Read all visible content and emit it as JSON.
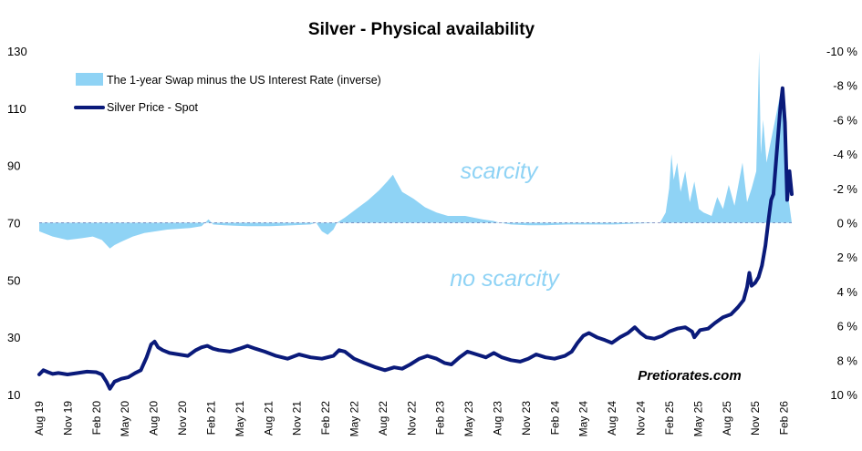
{
  "chart_data": {
    "type": "area+line",
    "title": "Silver - Physical availability",
    "xlabel": "",
    "ylabel_left": "",
    "ylabel_right": "",
    "ylim_left": [
      10,
      130
    ],
    "yticks_left": [
      10,
      30,
      50,
      70,
      90,
      110,
      130
    ],
    "ylim_right": [
      10,
      -10
    ],
    "yticks_right": [
      {
        "value": -10,
        "label": "-10 %"
      },
      {
        "value": -8,
        "label": "-8 %"
      },
      {
        "value": -6,
        "label": "-6 %"
      },
      {
        "value": -4,
        "label": "-4 %"
      },
      {
        "value": -2,
        "label": "-2 %"
      },
      {
        "value": 0,
        "label": "0 %"
      },
      {
        "value": 2,
        "label": "2 %"
      },
      {
        "value": 4,
        "label": "4 %"
      },
      {
        "value": 6,
        "label": "6 %"
      },
      {
        "value": 8,
        "label": "8 %"
      },
      {
        "value": 10,
        "label": "10 %"
      }
    ],
    "x_start": 2019.583,
    "x_end": 2026.15,
    "xticks": [
      {
        "t": 2019.583,
        "label": "Aug 19"
      },
      {
        "t": 2019.833,
        "label": "Nov 19"
      },
      {
        "t": 2020.083,
        "label": "Feb 20"
      },
      {
        "t": 2020.333,
        "label": "May 20"
      },
      {
        "t": 2020.583,
        "label": "Aug 20"
      },
      {
        "t": 2020.833,
        "label": "Nov 20"
      },
      {
        "t": 2021.083,
        "label": "Feb 21"
      },
      {
        "t": 2021.333,
        "label": "May 21"
      },
      {
        "t": 2021.583,
        "label": "Aug 21"
      },
      {
        "t": 2021.833,
        "label": "Nov 21"
      },
      {
        "t": 2022.083,
        "label": "Feb 22"
      },
      {
        "t": 2022.333,
        "label": "May 22"
      },
      {
        "t": 2022.583,
        "label": "Aug 22"
      },
      {
        "t": 2022.833,
        "label": "Nov 22"
      },
      {
        "t": 2023.083,
        "label": "Feb 23"
      },
      {
        "t": 2023.333,
        "label": "May 23"
      },
      {
        "t": 2023.583,
        "label": "Aug 23"
      },
      {
        "t": 2023.833,
        "label": "Nov 23"
      },
      {
        "t": 2024.083,
        "label": "Feb 24"
      },
      {
        "t": 2024.333,
        "label": "May 24"
      },
      {
        "t": 2024.583,
        "label": "Aug 24"
      },
      {
        "t": 2024.833,
        "label": "Nov 24"
      },
      {
        "t": 2025.083,
        "label": "Feb 25"
      },
      {
        "t": 2025.333,
        "label": "May 25"
      },
      {
        "t": 2025.583,
        "label": "Aug 25"
      },
      {
        "t": 2025.833,
        "label": "Nov 25"
      },
      {
        "t": 2026.083,
        "label": "Feb 26"
      }
    ],
    "series": [
      {
        "name": "The 1-year Swap minus the US Interest Rate (inverse)",
        "axis": "right",
        "type": "area",
        "color": "#8fd3f5",
        "points": [
          [
            2019.583,
            0.5
          ],
          [
            2019.7,
            0.8
          ],
          [
            2019.83,
            1.0
          ],
          [
            2019.95,
            0.9
          ],
          [
            2020.05,
            0.8
          ],
          [
            2020.13,
            1.0
          ],
          [
            2020.2,
            1.5
          ],
          [
            2020.24,
            1.3
          ],
          [
            2020.3,
            1.1
          ],
          [
            2020.4,
            0.8
          ],
          [
            2020.5,
            0.6
          ],
          [
            2020.6,
            0.5
          ],
          [
            2020.7,
            0.4
          ],
          [
            2020.8,
            0.35
          ],
          [
            2020.9,
            0.3
          ],
          [
            2021.0,
            0.2
          ],
          [
            2021.03,
            0.0
          ],
          [
            2021.06,
            -0.2
          ],
          [
            2021.1,
            0.1
          ],
          [
            2021.2,
            0.15
          ],
          [
            2021.4,
            0.2
          ],
          [
            2021.6,
            0.2
          ],
          [
            2021.8,
            0.15
          ],
          [
            2021.95,
            0.1
          ],
          [
            2022.0,
            0.0
          ],
          [
            2022.05,
            0.5
          ],
          [
            2022.1,
            0.7
          ],
          [
            2022.15,
            0.4
          ],
          [
            2022.18,
            0.0
          ],
          [
            2022.25,
            -0.3
          ],
          [
            2022.35,
            -0.8
          ],
          [
            2022.45,
            -1.3
          ],
          [
            2022.55,
            -1.9
          ],
          [
            2022.62,
            -2.4
          ],
          [
            2022.67,
            -2.8
          ],
          [
            2022.7,
            -2.4
          ],
          [
            2022.75,
            -1.8
          ],
          [
            2022.85,
            -1.4
          ],
          [
            2022.95,
            -0.9
          ],
          [
            2023.05,
            -0.6
          ],
          [
            2023.15,
            -0.4
          ],
          [
            2023.3,
            -0.4
          ],
          [
            2023.45,
            -0.2
          ],
          [
            2023.55,
            -0.1
          ],
          [
            2023.6,
            0.0
          ],
          [
            2023.7,
            0.1
          ],
          [
            2023.85,
            0.15
          ],
          [
            2024.0,
            0.15
          ],
          [
            2024.2,
            0.1
          ],
          [
            2024.4,
            0.1
          ],
          [
            2024.6,
            0.1
          ],
          [
            2024.8,
            0.05
          ],
          [
            2025.0,
            0.0
          ],
          [
            2025.05,
            -0.6
          ],
          [
            2025.08,
            -2.0
          ],
          [
            2025.1,
            -4.0
          ],
          [
            2025.12,
            -2.5
          ],
          [
            2025.15,
            -3.5
          ],
          [
            2025.18,
            -1.8
          ],
          [
            2025.22,
            -3.0
          ],
          [
            2025.26,
            -1.2
          ],
          [
            2025.3,
            -2.4
          ],
          [
            2025.34,
            -0.8
          ],
          [
            2025.38,
            -0.6
          ],
          [
            2025.45,
            -0.4
          ],
          [
            2025.5,
            -1.5
          ],
          [
            2025.55,
            -0.8
          ],
          [
            2025.6,
            -2.2
          ],
          [
            2025.65,
            -1.0
          ],
          [
            2025.72,
            -3.5
          ],
          [
            2025.76,
            -1.2
          ],
          [
            2025.8,
            -2.0
          ],
          [
            2025.84,
            -3.0
          ],
          [
            2025.865,
            -10.0
          ],
          [
            2025.88,
            -4.0
          ],
          [
            2025.9,
            -6.0
          ],
          [
            2025.93,
            -3.5
          ],
          [
            2025.96,
            -4.5
          ],
          [
            2025.99,
            -5.5
          ],
          [
            2026.02,
            -6.5
          ],
          [
            2026.05,
            -7.5
          ],
          [
            2026.08,
            -7.0
          ],
          [
            2026.1,
            -5.0
          ],
          [
            2026.12,
            -1.5
          ],
          [
            2026.15,
            0.0
          ]
        ]
      },
      {
        "name": "Silver Price - Spot",
        "axis": "left",
        "type": "line",
        "color": "#0a1a7a",
        "points": [
          [
            2019.583,
            17.0
          ],
          [
            2019.62,
            18.5
          ],
          [
            2019.66,
            17.8
          ],
          [
            2019.7,
            17.2
          ],
          [
            2019.75,
            17.5
          ],
          [
            2019.83,
            17.0
          ],
          [
            2019.92,
            17.5
          ],
          [
            2020.0,
            18.0
          ],
          [
            2020.08,
            17.8
          ],
          [
            2020.13,
            17.0
          ],
          [
            2020.17,
            14.5
          ],
          [
            2020.2,
            12.0
          ],
          [
            2020.24,
            14.5
          ],
          [
            2020.3,
            15.5
          ],
          [
            2020.36,
            16.0
          ],
          [
            2020.42,
            17.5
          ],
          [
            2020.47,
            18.5
          ],
          [
            2020.52,
            23.0
          ],
          [
            2020.56,
            27.5
          ],
          [
            2020.59,
            28.5
          ],
          [
            2020.62,
            26.5
          ],
          [
            2020.66,
            25.5
          ],
          [
            2020.72,
            24.5
          ],
          [
            2020.8,
            24.0
          ],
          [
            2020.88,
            23.5
          ],
          [
            2020.95,
            25.5
          ],
          [
            2021.0,
            26.5
          ],
          [
            2021.05,
            27.0
          ],
          [
            2021.1,
            26.0
          ],
          [
            2021.15,
            25.5
          ],
          [
            2021.25,
            25.0
          ],
          [
            2021.33,
            26.0
          ],
          [
            2021.4,
            27.0
          ],
          [
            2021.47,
            26.0
          ],
          [
            2021.55,
            25.0
          ],
          [
            2021.65,
            23.5
          ],
          [
            2021.75,
            22.5
          ],
          [
            2021.85,
            24.0
          ],
          [
            2021.95,
            23.0
          ],
          [
            2022.05,
            22.5
          ],
          [
            2022.15,
            23.5
          ],
          [
            2022.2,
            25.5
          ],
          [
            2022.25,
            25.0
          ],
          [
            2022.33,
            22.5
          ],
          [
            2022.42,
            21.0
          ],
          [
            2022.52,
            19.5
          ],
          [
            2022.6,
            18.5
          ],
          [
            2022.68,
            19.5
          ],
          [
            2022.75,
            19.0
          ],
          [
            2022.82,
            20.5
          ],
          [
            2022.9,
            22.5
          ],
          [
            2022.97,
            23.5
          ],
          [
            2023.05,
            22.5
          ],
          [
            2023.12,
            21.0
          ],
          [
            2023.18,
            20.5
          ],
          [
            2023.25,
            23.0
          ],
          [
            2023.32,
            25.0
          ],
          [
            2023.4,
            24.0
          ],
          [
            2023.48,
            23.0
          ],
          [
            2023.55,
            24.5
          ],
          [
            2023.62,
            23.0
          ],
          [
            2023.7,
            22.0
          ],
          [
            2023.78,
            21.5
          ],
          [
            2023.85,
            22.5
          ],
          [
            2023.92,
            24.0
          ],
          [
            2024.0,
            23.0
          ],
          [
            2024.08,
            22.5
          ],
          [
            2024.17,
            23.5
          ],
          [
            2024.23,
            25.0
          ],
          [
            2024.28,
            28.0
          ],
          [
            2024.33,
            30.5
          ],
          [
            2024.38,
            31.5
          ],
          [
            2024.45,
            30.0
          ],
          [
            2024.52,
            29.0
          ],
          [
            2024.58,
            28.0
          ],
          [
            2024.65,
            30.0
          ],
          [
            2024.72,
            31.5
          ],
          [
            2024.78,
            33.5
          ],
          [
            2024.83,
            31.5
          ],
          [
            2024.88,
            30.0
          ],
          [
            2024.95,
            29.5
          ],
          [
            2025.02,
            30.5
          ],
          [
            2025.08,
            32.0
          ],
          [
            2025.15,
            33.0
          ],
          [
            2025.22,
            33.5
          ],
          [
            2025.28,
            32.0
          ],
          [
            2025.3,
            30.0
          ],
          [
            2025.35,
            32.5
          ],
          [
            2025.42,
            33.0
          ],
          [
            2025.48,
            35.0
          ],
          [
            2025.55,
            37.0
          ],
          [
            2025.62,
            38.0
          ],
          [
            2025.68,
            40.5
          ],
          [
            2025.73,
            43.0
          ],
          [
            2025.76,
            47.5
          ],
          [
            2025.78,
            52.5
          ],
          [
            2025.8,
            48.0
          ],
          [
            2025.83,
            49.0
          ],
          [
            2025.86,
            51.0
          ],
          [
            2025.89,
            55.0
          ],
          [
            2025.92,
            62.0
          ],
          [
            2025.95,
            72.0
          ],
          [
            2025.97,
            78.0
          ],
          [
            2025.99,
            80.0
          ],
          [
            2026.01,
            90.0
          ],
          [
            2026.03,
            100.0
          ],
          [
            2026.05,
            110.0
          ],
          [
            2026.07,
            117.0
          ],
          [
            2026.09,
            105.0
          ],
          [
            2026.11,
            78.0
          ],
          [
            2026.13,
            88.0
          ],
          [
            2026.15,
            80.0
          ]
        ]
      }
    ],
    "annotations": [
      {
        "text": "scarcity",
        "color": "#8fd3f5"
      },
      {
        "text": "no scarcity",
        "color": "#8fd3f5"
      },
      {
        "text": "Pretiorates.com",
        "color": "#000000"
      }
    ]
  }
}
